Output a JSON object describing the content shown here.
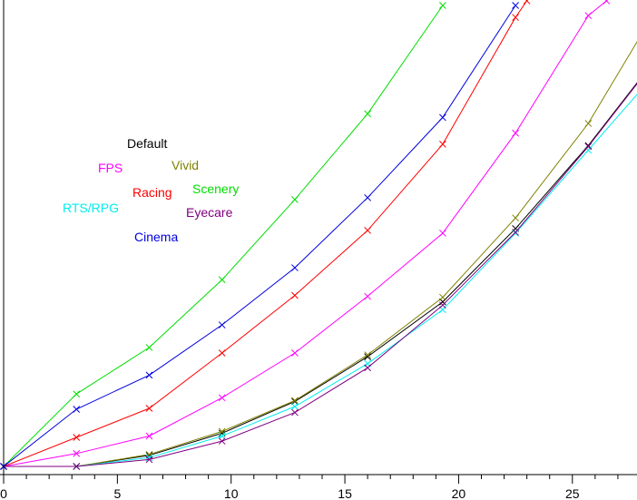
{
  "chart_data": {
    "type": "line",
    "xlim": [
      0,
      28
    ],
    "ylim": [
      0,
      100
    ],
    "x_ticks": [
      0,
      5,
      10,
      15,
      20,
      25
    ],
    "x_tick_labels": [
      "0",
      "5",
      "10",
      "15",
      "20",
      "25"
    ],
    "grid": false,
    "legend_placement": "upper-left (scattered labels)",
    "series": [
      {
        "name": "Default",
        "color": "#000000",
        "x": [
          0,
          3.2,
          6.4,
          9.6,
          12.8,
          16.0,
          19.3,
          22.5,
          25.7,
          28.0
        ],
        "y": [
          0.0,
          0.0,
          2.4,
          7.2,
          14.1,
          23.8,
          35.7,
          51.6,
          69.6,
          84.2
        ]
      },
      {
        "name": "Vivid",
        "color": "#808000",
        "x": [
          0,
          3.2,
          6.4,
          9.6,
          12.8,
          16.0,
          19.3,
          22.5,
          25.7,
          28.0
        ],
        "y": [
          0.0,
          0.0,
          2.6,
          7.6,
          14.3,
          24.2,
          36.7,
          53.9,
          74.4,
          93.4
        ]
      },
      {
        "name": "FPS",
        "color": "#ff00ff",
        "x": [
          0,
          3.2,
          6.4,
          9.6,
          12.8,
          16.0,
          19.3,
          22.5,
          25.7,
          26.5
        ],
        "y": [
          0.0,
          2.8,
          6.6,
          14.9,
          24.6,
          36.9,
          50.6,
          72.3,
          97.8,
          101.0
        ]
      },
      {
        "name": "Racing",
        "color": "#ff0000",
        "x": [
          0,
          3.2,
          6.4,
          9.6,
          12.8,
          16.0,
          19.3,
          22.5,
          23.0
        ],
        "y": [
          0.0,
          6.3,
          12.6,
          24.6,
          37.1,
          51.2,
          69.9,
          97.4,
          101.0
        ]
      },
      {
        "name": "Scenery",
        "color": "#00dd00",
        "x": [
          0,
          3.2,
          6.4,
          9.6,
          12.8,
          16.0,
          19.3
        ],
        "y": [
          0.0,
          15.7,
          25.8,
          40.5,
          57.9,
          76.5,
          100.0
        ]
      },
      {
        "name": "RTS/RPG",
        "color": "#00eeee",
        "x": [
          0,
          3.2,
          6.4,
          9.6,
          12.8,
          16.0,
          19.3,
          22.5,
          25.7,
          28.0
        ],
        "y": [
          0.0,
          0.0,
          1.9,
          6.6,
          13.0,
          22.3,
          34.0,
          50.6,
          68.6,
          81.6
        ]
      },
      {
        "name": "Eyecare",
        "color": "#800080",
        "x": [
          0,
          3.2,
          6.4,
          9.6,
          12.8,
          16.0,
          19.3,
          22.5,
          25.7,
          28.0
        ],
        "y": [
          0.0,
          0.0,
          1.5,
          5.5,
          11.7,
          21.4,
          35.0,
          50.8,
          69.4,
          84.0
        ]
      },
      {
        "name": "Cinema",
        "color": "#0000dd",
        "x": [
          0,
          3.2,
          6.4,
          9.6,
          12.8,
          16.0,
          19.3,
          22.5
        ],
        "y": [
          0.0,
          12.4,
          19.8,
          30.7,
          43.1,
          58.3,
          75.7,
          100.0
        ]
      }
    ]
  }
}
